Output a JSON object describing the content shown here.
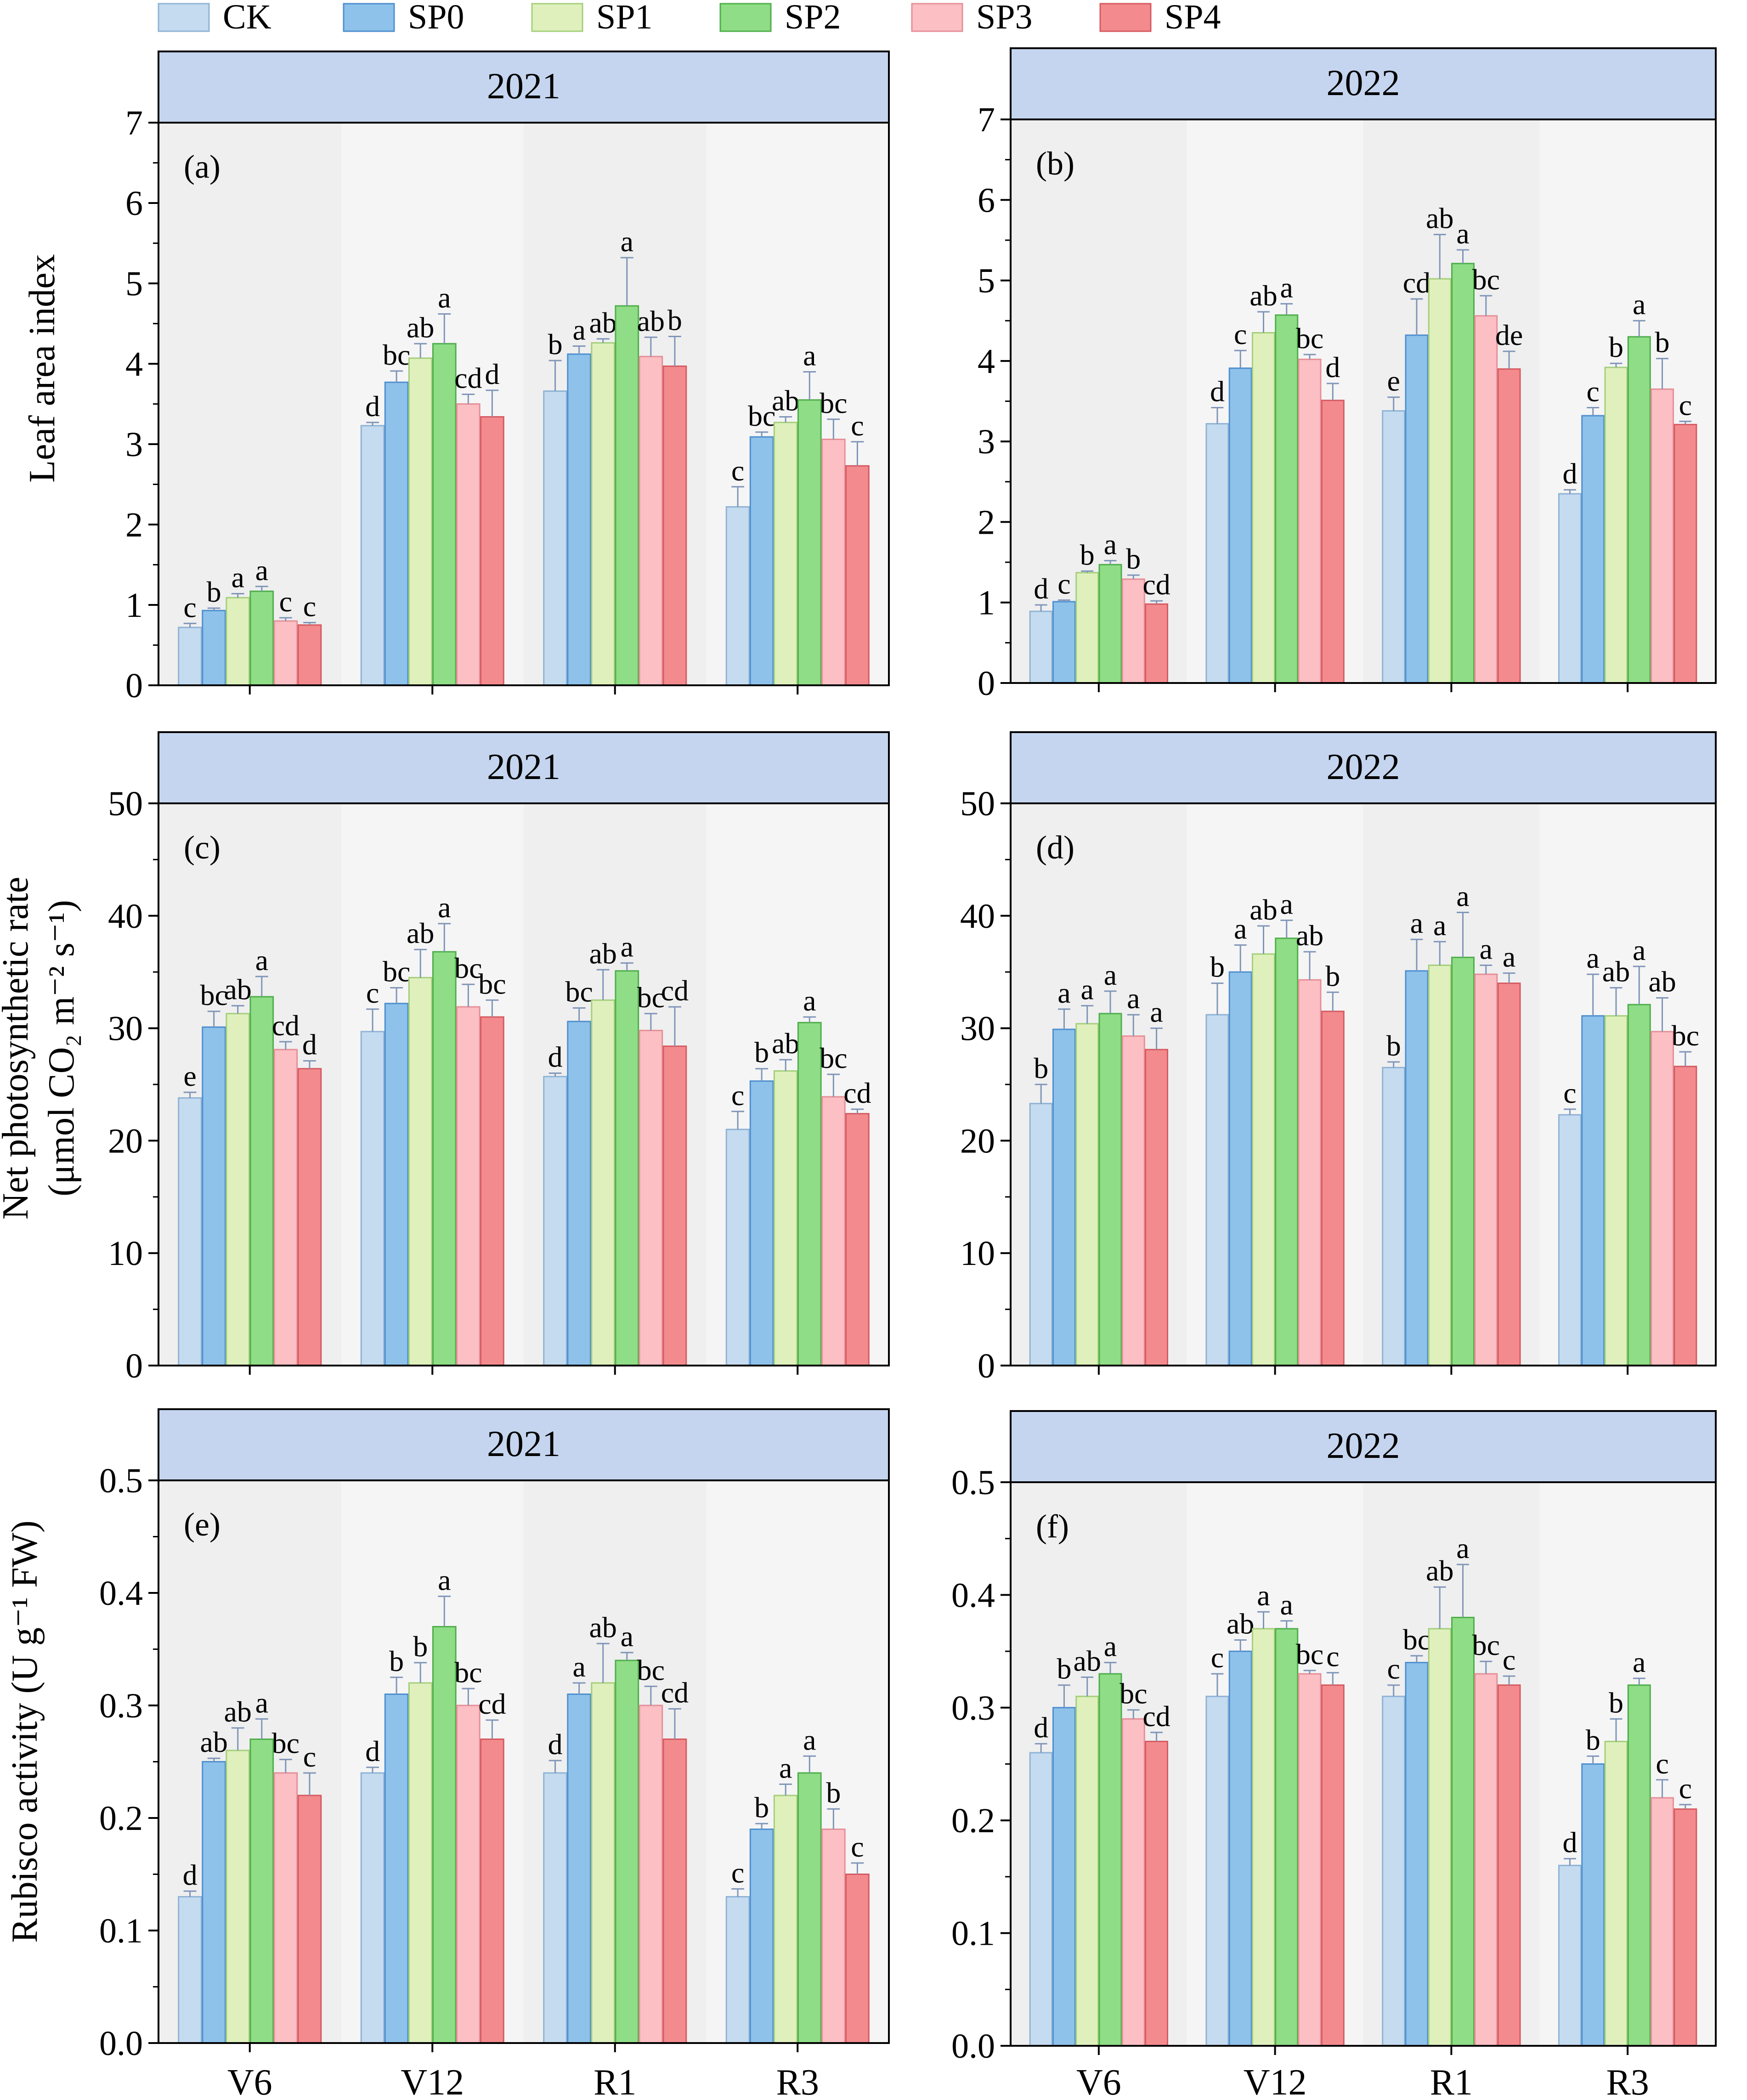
{
  "figure": {
    "x_categories": [
      "V6",
      "V12",
      "R1",
      "R3"
    ],
    "ylabels": [
      [
        "Leaf area index"
      ],
      [
        "Net photosynthetic rate",
        "(μmol CO₂ m⁻² s⁻¹)"
      ],
      [
        "Rubisco activity (U g⁻¹ FW)"
      ]
    ]
  },
  "legend": {
    "entries": [
      {
        "name": "CK",
        "fill": "#c5dbef",
        "stroke": "#8fb3d6"
      },
      {
        "name": "SP0",
        "fill": "#8ec2ea",
        "stroke": "#4e8fd0"
      },
      {
        "name": "SP1",
        "fill": "#dff0bd",
        "stroke": "#a4cf7a"
      },
      {
        "name": "SP2",
        "fill": "#8fdd86",
        "stroke": "#4fae4b"
      },
      {
        "name": "SP3",
        "fill": "#fbbfc4",
        "stroke": "#e68f97"
      },
      {
        "name": "SP4",
        "fill": "#f38b8e",
        "stroke": "#d65a60"
      }
    ]
  },
  "colors": {
    "header_fill": "#c5d5ef",
    "plot_bg": "#f5f5f5",
    "error_bar": "#7f95b8"
  },
  "chart_data": [
    {
      "type": "bar",
      "panel": "(a)",
      "title": "2021",
      "ylabel": "Leaf area index",
      "ylim": [
        0,
        7
      ],
      "yticks": [
        0,
        1,
        2,
        3,
        4,
        5,
        6,
        7
      ],
      "categories": [
        "V6",
        "V12",
        "R1",
        "R3"
      ],
      "series": [
        {
          "name": "CK",
          "values": [
            0.72,
            3.23,
            3.66,
            2.22
          ],
          "errors": [
            0.05,
            0.04,
            0.38,
            0.25
          ],
          "letters": [
            "c",
            "d",
            "b",
            "c"
          ]
        },
        {
          "name": "SP0",
          "values": [
            0.93,
            3.77,
            4.12,
            3.09
          ],
          "errors": [
            0.03,
            0.14,
            0.1,
            0.06
          ],
          "letters": [
            "b",
            "bc",
            "a",
            "bc"
          ]
        },
        {
          "name": "SP1",
          "values": [
            1.09,
            4.07,
            4.26,
            3.27
          ],
          "errors": [
            0.05,
            0.18,
            0.05,
            0.07
          ],
          "letters": [
            "a",
            "ab",
            "ab",
            "ab"
          ]
        },
        {
          "name": "SP2",
          "values": [
            1.17,
            4.25,
            4.72,
            3.55
          ],
          "errors": [
            0.06,
            0.37,
            0.6,
            0.35
          ],
          "letters": [
            "a",
            "a",
            "a",
            "a"
          ]
        },
        {
          "name": "SP3",
          "values": [
            0.8,
            3.5,
            4.09,
            3.06
          ],
          "errors": [
            0.04,
            0.12,
            0.24,
            0.25
          ],
          "letters": [
            "c",
            "cd",
            "ab",
            "bc"
          ]
        },
        {
          "name": "SP4",
          "values": [
            0.75,
            3.34,
            3.97,
            2.73
          ],
          "errors": [
            0.03,
            0.33,
            0.37,
            0.3
          ],
          "letters": [
            "c",
            "d",
            "b",
            "c"
          ]
        }
      ]
    },
    {
      "type": "bar",
      "panel": "(b)",
      "title": "2022",
      "ylabel": "Leaf area index",
      "ylim": [
        0,
        7
      ],
      "yticks": [
        0,
        1,
        2,
        3,
        4,
        5,
        6,
        7
      ],
      "categories": [
        "V6",
        "V12",
        "R1",
        "R3"
      ],
      "series": [
        {
          "name": "CK",
          "values": [
            0.89,
            3.22,
            3.38,
            2.35
          ],
          "errors": [
            0.08,
            0.2,
            0.17,
            0.05
          ],
          "letters": [
            "d",
            "d",
            "e",
            "d"
          ]
        },
        {
          "name": "SP0",
          "values": [
            1.01,
            3.91,
            4.32,
            3.32
          ],
          "errors": [
            0.02,
            0.22,
            0.45,
            0.1
          ],
          "letters": [
            "c",
            "c",
            "cd",
            "c"
          ]
        },
        {
          "name": "SP1",
          "values": [
            1.37,
            4.35,
            5.02,
            3.92
          ],
          "errors": [
            0.02,
            0.26,
            0.55,
            0.05
          ],
          "letters": [
            "b",
            "ab",
            "ab",
            "b"
          ]
        },
        {
          "name": "SP2",
          "values": [
            1.47,
            4.57,
            5.21,
            4.3
          ],
          "errors": [
            0.05,
            0.14,
            0.17,
            0.2
          ],
          "letters": [
            "a",
            "a",
            "a",
            "a"
          ]
        },
        {
          "name": "SP3",
          "values": [
            1.29,
            4.02,
            4.56,
            3.65
          ],
          "errors": [
            0.05,
            0.06,
            0.25,
            0.38
          ],
          "letters": [
            "b",
            "bc",
            "bc",
            "b"
          ]
        },
        {
          "name": "SP4",
          "values": [
            0.98,
            3.51,
            3.9,
            3.21
          ],
          "errors": [
            0.04,
            0.21,
            0.22,
            0.04
          ],
          "letters": [
            "cd",
            "d",
            "de",
            "c"
          ]
        }
      ]
    },
    {
      "type": "bar",
      "panel": "(c)",
      "title": "2021",
      "ylabel": "Net photosynthetic rate (μmol CO₂ m⁻² s⁻¹)",
      "ylim": [
        0,
        50
      ],
      "yticks": [
        0,
        10,
        20,
        30,
        40,
        50
      ],
      "categories": [
        "V6",
        "V12",
        "R1",
        "R3"
      ],
      "series": [
        {
          "name": "CK",
          "values": [
            23.8,
            29.7,
            25.7,
            21.0
          ],
          "errors": [
            0.5,
            2.0,
            0.3,
            1.6
          ],
          "letters": [
            "e",
            "c",
            "d",
            "c"
          ]
        },
        {
          "name": "SP0",
          "values": [
            30.1,
            32.2,
            30.6,
            25.3
          ],
          "errors": [
            1.4,
            1.4,
            1.2,
            1.1
          ],
          "letters": [
            "bc",
            "bc",
            "bc",
            "b"
          ]
        },
        {
          "name": "SP1",
          "values": [
            31.3,
            34.5,
            32.5,
            26.2
          ],
          "errors": [
            0.7,
            2.5,
            2.7,
            1.0
          ],
          "letters": [
            "ab",
            "ab",
            "ab",
            "ab"
          ]
        },
        {
          "name": "SP2",
          "values": [
            32.8,
            36.8,
            35.1,
            30.5
          ],
          "errors": [
            1.8,
            2.5,
            0.7,
            0.5
          ],
          "letters": [
            "a",
            "a",
            "a",
            "a"
          ]
        },
        {
          "name": "SP3",
          "values": [
            28.1,
            31.9,
            29.8,
            23.9
          ],
          "errors": [
            0.7,
            2.0,
            1.5,
            2.0
          ],
          "letters": [
            "cd",
            "bc",
            "bc",
            "bc"
          ]
        },
        {
          "name": "SP4",
          "values": [
            26.4,
            31.0,
            28.4,
            22.4
          ],
          "errors": [
            0.7,
            1.5,
            3.5,
            0.4
          ],
          "letters": [
            "d",
            "bc",
            "cd",
            "cd"
          ]
        }
      ]
    },
    {
      "type": "bar",
      "panel": "(d)",
      "title": "2022",
      "ylabel": "Net photosynthetic rate (μmol CO₂ m⁻² s⁻¹)",
      "ylim": [
        0,
        50
      ],
      "yticks": [
        0,
        10,
        20,
        30,
        40,
        50
      ],
      "categories": [
        "V6",
        "V12",
        "R1",
        "R3"
      ],
      "series": [
        {
          "name": "CK",
          "values": [
            23.3,
            31.2,
            26.5,
            22.3
          ],
          "errors": [
            1.7,
            2.8,
            0.5,
            0.5
          ],
          "letters": [
            "b",
            "b",
            "b",
            "c"
          ]
        },
        {
          "name": "SP0",
          "values": [
            29.9,
            35.0,
            35.1,
            31.1
          ],
          "errors": [
            1.8,
            2.4,
            2.8,
            3.7
          ],
          "letters": [
            "a",
            "a",
            "a",
            "a"
          ]
        },
        {
          "name": "SP1",
          "values": [
            30.4,
            36.6,
            35.6,
            31.1
          ],
          "errors": [
            1.6,
            2.5,
            2.1,
            2.5
          ],
          "letters": [
            "a",
            "ab",
            "a",
            "ab"
          ]
        },
        {
          "name": "SP2",
          "values": [
            31.3,
            38.0,
            36.3,
            32.1
          ],
          "errors": [
            2.0,
            1.6,
            4.0,
            3.4
          ],
          "letters": [
            "a",
            "a",
            "a",
            "a"
          ]
        },
        {
          "name": "SP3",
          "values": [
            29.3,
            34.3,
            34.8,
            29.7
          ],
          "errors": [
            1.9,
            2.5,
            0.8,
            3.0
          ],
          "letters": [
            "a",
            "ab",
            "a",
            "ab"
          ]
        },
        {
          "name": "SP4",
          "values": [
            28.1,
            31.5,
            34.0,
            26.6
          ],
          "errors": [
            1.9,
            1.7,
            0.9,
            1.3
          ],
          "letters": [
            "a",
            "b",
            "a",
            "bc"
          ]
        }
      ]
    },
    {
      "type": "bar",
      "panel": "(e)",
      "title": "2021",
      "ylabel": "Rubisco activity (U g⁻¹ FW)",
      "ylim": [
        0,
        0.5
      ],
      "yticks": [
        0.0,
        0.1,
        0.2,
        0.3,
        0.4,
        0.5
      ],
      "categories": [
        "V6",
        "V12",
        "R1",
        "R3"
      ],
      "series": [
        {
          "name": "CK",
          "values": [
            0.13,
            0.24,
            0.24,
            0.13
          ],
          "errors": [
            0.005,
            0.005,
            0.011,
            0.007
          ],
          "letters": [
            "d",
            "d",
            "d",
            "c"
          ]
        },
        {
          "name": "SP0",
          "values": [
            0.25,
            0.31,
            0.31,
            0.19
          ],
          "errors": [
            0.003,
            0.015,
            0.01,
            0.005
          ],
          "letters": [
            "ab",
            "b",
            "a",
            "b"
          ]
        },
        {
          "name": "SP1",
          "values": [
            0.26,
            0.32,
            0.32,
            0.22
          ],
          "errors": [
            0.02,
            0.018,
            0.035,
            0.01
          ],
          "letters": [
            "ab",
            "b",
            "ab",
            "a"
          ]
        },
        {
          "name": "SP2",
          "values": [
            0.27,
            0.37,
            0.34,
            0.24
          ],
          "errors": [
            0.018,
            0.027,
            0.007,
            0.015
          ],
          "letters": [
            "a",
            "a",
            "a",
            "a"
          ]
        },
        {
          "name": "SP3",
          "values": [
            0.24,
            0.3,
            0.3,
            0.19
          ],
          "errors": [
            0.012,
            0.015,
            0.017,
            0.018
          ],
          "letters": [
            "bc",
            "bc",
            "bc",
            "b"
          ]
        },
        {
          "name": "SP4",
          "values": [
            0.22,
            0.27,
            0.27,
            0.15
          ],
          "errors": [
            0.02,
            0.017,
            0.027,
            0.01
          ],
          "letters": [
            "c",
            "cd",
            "cd",
            "c"
          ]
        }
      ]
    },
    {
      "type": "bar",
      "panel": "(f)",
      "title": "2022",
      "ylabel": "Rubisco activity (U g⁻¹ FW)",
      "ylim": [
        0,
        0.5
      ],
      "yticks": [
        0.0,
        0.1,
        0.2,
        0.3,
        0.4,
        0.5
      ],
      "categories": [
        "V6",
        "V12",
        "R1",
        "R3"
      ],
      "series": [
        {
          "name": "CK",
          "values": [
            0.26,
            0.31,
            0.31,
            0.16
          ],
          "errors": [
            0.008,
            0.02,
            0.01,
            0.006
          ],
          "letters": [
            "d",
            "c",
            "c",
            "d"
          ]
        },
        {
          "name": "SP0",
          "values": [
            0.3,
            0.35,
            0.34,
            0.25
          ],
          "errors": [
            0.02,
            0.01,
            0.006,
            0.007
          ],
          "letters": [
            "b",
            "ab",
            "bc",
            "b"
          ]
        },
        {
          "name": "SP1",
          "values": [
            0.31,
            0.37,
            0.37,
            0.27
          ],
          "errors": [
            0.017,
            0.015,
            0.037,
            0.02
          ],
          "letters": [
            "ab",
            "a",
            "ab",
            "b"
          ]
        },
        {
          "name": "SP2",
          "values": [
            0.33,
            0.37,
            0.38,
            0.32
          ],
          "errors": [
            0.01,
            0.007,
            0.047,
            0.006
          ],
          "letters": [
            "a",
            "a",
            "a",
            "a"
          ]
        },
        {
          "name": "SP3",
          "values": [
            0.29,
            0.33,
            0.33,
            0.22
          ],
          "errors": [
            0.008,
            0.003,
            0.011,
            0.016
          ],
          "letters": [
            "bc",
            "bc",
            "bc",
            "c"
          ]
        },
        {
          "name": "SP4",
          "values": [
            0.27,
            0.32,
            0.32,
            0.21
          ],
          "errors": [
            0.008,
            0.011,
            0.008,
            0.004
          ],
          "letters": [
            "cd",
            "c",
            "c",
            "c"
          ]
        }
      ]
    }
  ]
}
